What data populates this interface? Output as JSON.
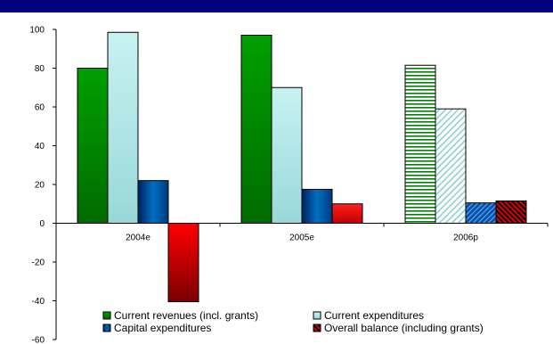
{
  "chart_data": {
    "type": "bar",
    "title": "",
    "xlabel": "",
    "ylabel": "",
    "categories": [
      "2004e",
      "2005e",
      "2006p"
    ],
    "ylim": [
      -60,
      100
    ],
    "yticks": [
      100,
      80,
      60,
      40,
      20,
      0,
      -20,
      -40,
      -60
    ],
    "grid": false,
    "legend_position": "bottom",
    "series": [
      {
        "name": "Current revenues (incl. grants)",
        "values": [
          80,
          97,
          81.5
        ],
        "color": "#008000"
      },
      {
        "name": "Current expenditures",
        "values": [
          98.5,
          70,
          59
        ],
        "color": "#a8e0e0"
      },
      {
        "name": "Capital expenditures",
        "values": [
          22,
          17.5,
          10.5
        ],
        "color": "#0060a8"
      },
      {
        "name": "Overall balance (including grants)",
        "values": [
          -40.5,
          10,
          11.5
        ],
        "color": "#ff0000"
      }
    ],
    "hatched_categories": [
      "2006p"
    ]
  },
  "header": {
    "band_color": "#000080"
  }
}
